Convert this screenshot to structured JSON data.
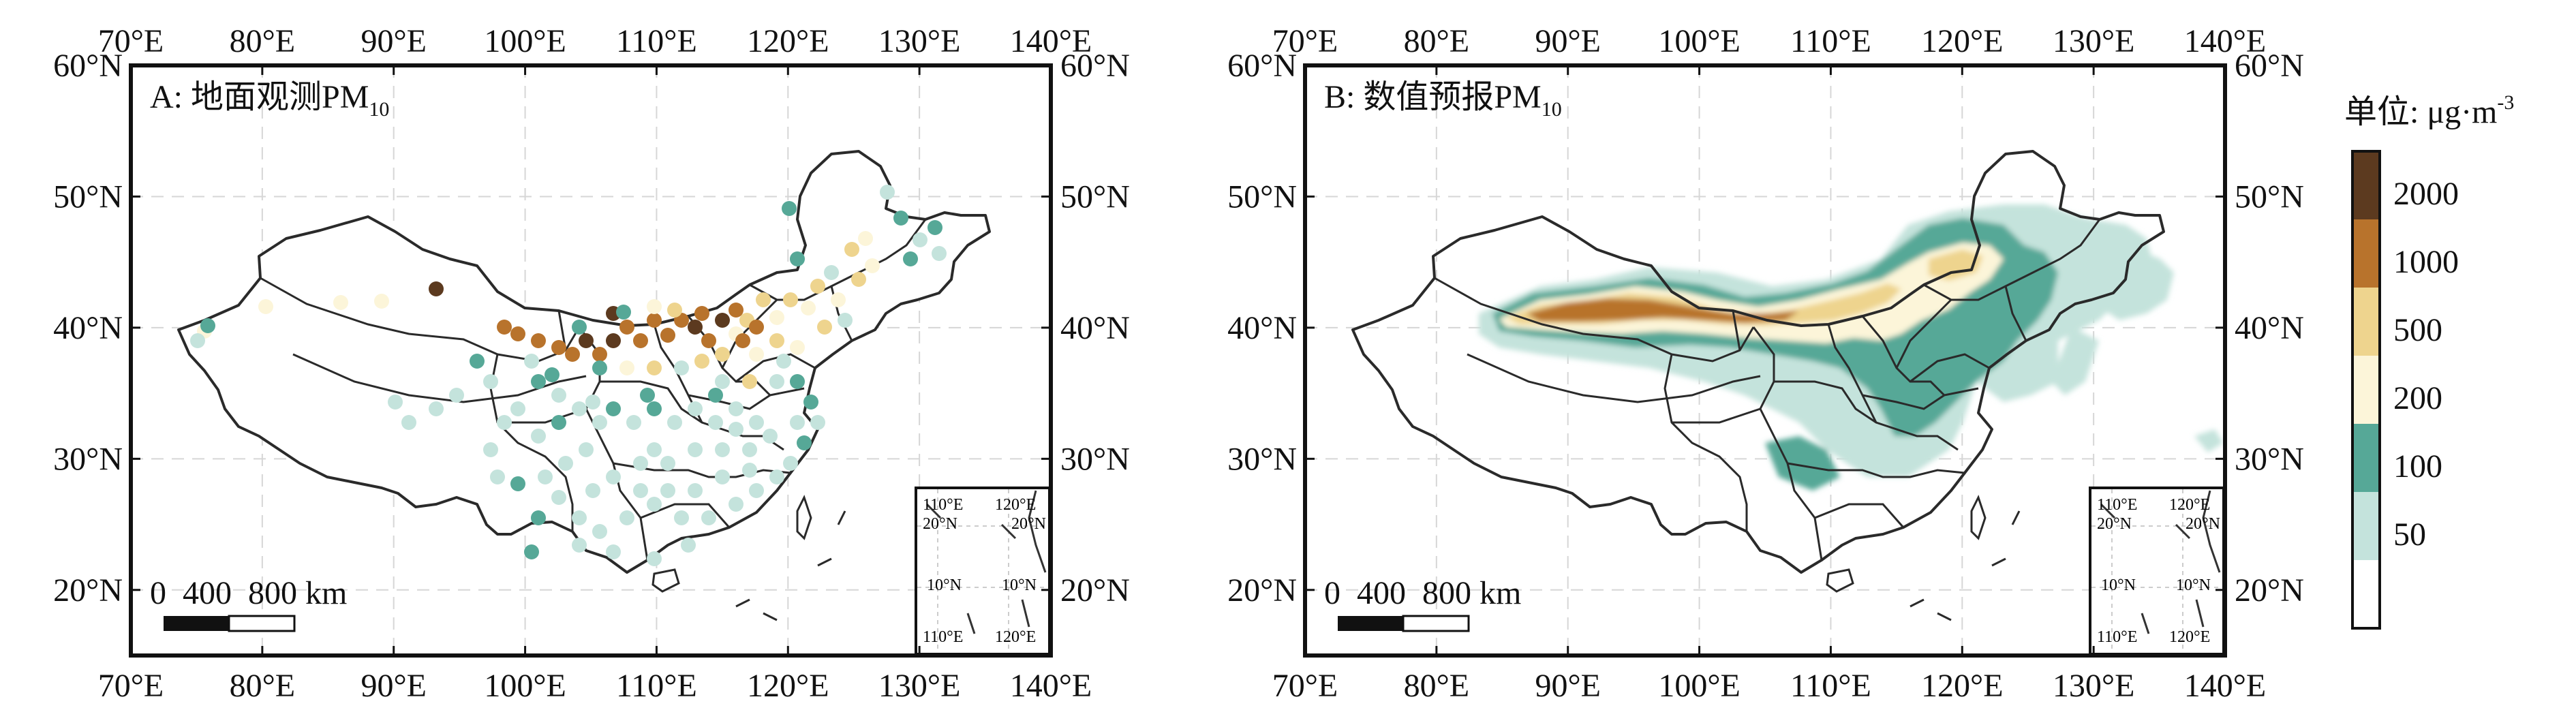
{
  "axes": {
    "lon_ticks": [
      "70°E",
      "80°E",
      "90°E",
      "100°E",
      "110°E",
      "120°E",
      "130°E",
      "140°E"
    ],
    "lat_ticks": [
      "20°N",
      "30°N",
      "40°N",
      "50°N",
      "60°N"
    ],
    "lon_range": [
      70,
      140
    ],
    "lat_range": [
      15,
      60
    ],
    "grid": true
  },
  "panels": [
    {
      "title": "A: 地面观测PM",
      "title_sub": "10",
      "type": "station-points",
      "scalebar": {
        "label": "0  400  800 km"
      },
      "inset": {
        "labels": [
          "110°E",
          "120°E",
          "20°N",
          "20°N",
          "10°N",
          "10°N",
          "110°E",
          "120°E"
        ]
      }
    },
    {
      "title": "B: 数值预报PM",
      "title_sub": "10",
      "type": "filled-contours",
      "scalebar": {
        "label": "0  400  800 km"
      },
      "inset": {
        "labels": [
          "110°E",
          "120°E",
          "20°N",
          "20°N",
          "10°N",
          "10°N",
          "110°E",
          "120°E"
        ]
      }
    }
  ],
  "legend": {
    "title": "单位: μg·m",
    "title_sup": "-3",
    "classes": [
      {
        "label": "2000",
        "color": "#5c3a1f"
      },
      {
        "label": "1000",
        "color": "#b8732c"
      },
      {
        "label": "500",
        "color": "#eed48e"
      },
      {
        "label": "200",
        "color": "#fcf5d9"
      },
      {
        "label": "100",
        "color": "#56a897"
      },
      {
        "label": "50",
        "color": "#c4e3dc"
      },
      {
        "label": "",
        "color": "#ffffff"
      }
    ]
  }
}
